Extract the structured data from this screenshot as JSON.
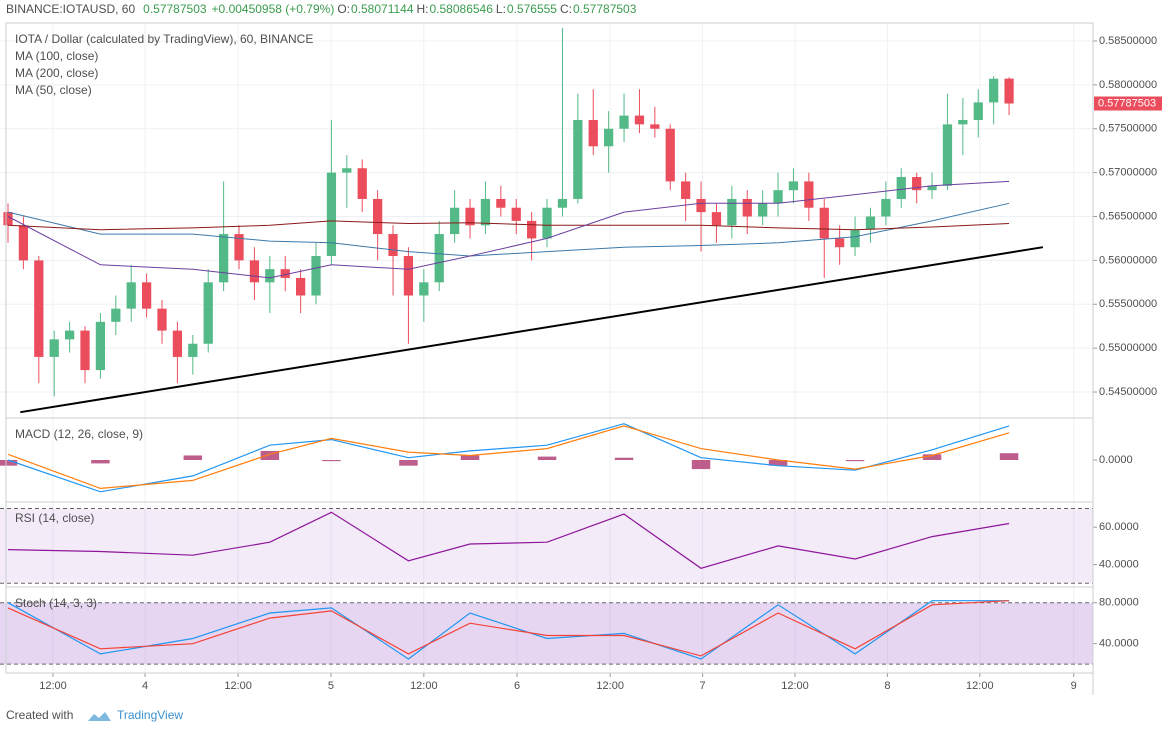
{
  "chart_data": {
    "type": "candlestick",
    "header": {
      "symbol": "BINANCE:IOTAUSD, 60",
      "change": "+0.00450958 (+0.79%)",
      "o_label": "O:",
      "h_label": "H:",
      "l_label": "L:",
      "c_label": "C:"
    },
    "title": "IOTA / Dollar (calculated by TradingView), 60, BINANCE",
    "up_color": "#53b987",
    "down_color": "#eb4d5c",
    "candles": [
      [
        0.5655,
        0.5665,
        0.562,
        0.564
      ],
      [
        0.564,
        0.565,
        0.559,
        0.56
      ],
      [
        0.56,
        0.5605,
        0.546,
        0.549
      ],
      [
        0.549,
        0.552,
        0.5445,
        0.551
      ],
      [
        0.551,
        0.553,
        0.5495,
        0.552
      ],
      [
        0.552,
        0.5525,
        0.546,
        0.5475
      ],
      [
        0.5475,
        0.554,
        0.5465,
        0.553
      ],
      [
        0.553,
        0.556,
        0.5515,
        0.5545
      ],
      [
        0.5545,
        0.5595,
        0.553,
        0.5575
      ],
      [
        0.5575,
        0.5585,
        0.5535,
        0.5545
      ],
      [
        0.5545,
        0.5555,
        0.5505,
        0.552
      ],
      [
        0.552,
        0.553,
        0.546,
        0.549
      ],
      [
        0.549,
        0.5515,
        0.547,
        0.5505
      ],
      [
        0.5505,
        0.559,
        0.5495,
        0.5575
      ],
      [
        0.5575,
        0.569,
        0.5565,
        0.563
      ],
      [
        0.563,
        0.564,
        0.559,
        0.56
      ],
      [
        0.56,
        0.5615,
        0.5555,
        0.5575
      ],
      [
        0.5575,
        0.5605,
        0.554,
        0.559
      ],
      [
        0.559,
        0.5605,
        0.5565,
        0.558
      ],
      [
        0.558,
        0.559,
        0.554,
        0.556
      ],
      [
        0.556,
        0.562,
        0.555,
        0.5605
      ],
      [
        0.5605,
        0.576,
        0.5595,
        0.57
      ],
      [
        0.57,
        0.572,
        0.566,
        0.5705
      ],
      [
        0.5705,
        0.5715,
        0.5655,
        0.567
      ],
      [
        0.567,
        0.568,
        0.56,
        0.563
      ],
      [
        0.563,
        0.564,
        0.556,
        0.5605
      ],
      [
        0.5605,
        0.5615,
        0.5505,
        0.556
      ],
      [
        0.556,
        0.559,
        0.553,
        0.5575
      ],
      [
        0.5575,
        0.5645,
        0.5565,
        0.563
      ],
      [
        0.563,
        0.568,
        0.562,
        0.566
      ],
      [
        0.566,
        0.567,
        0.5625,
        0.564
      ],
      [
        0.564,
        0.569,
        0.563,
        0.567
      ],
      [
        0.567,
        0.5685,
        0.565,
        0.566
      ],
      [
        0.566,
        0.567,
        0.563,
        0.5645
      ],
      [
        0.5645,
        0.5655,
        0.56,
        0.5625
      ],
      [
        0.5625,
        0.567,
        0.5615,
        0.566
      ],
      [
        0.566,
        0.5865,
        0.565,
        0.567
      ],
      [
        0.567,
        0.579,
        0.5665,
        0.576
      ],
      [
        0.576,
        0.5795,
        0.572,
        0.573
      ],
      [
        0.573,
        0.577,
        0.57,
        0.575
      ],
      [
        0.575,
        0.579,
        0.5735,
        0.5765
      ],
      [
        0.5765,
        0.5795,
        0.5745,
        0.5755
      ],
      [
        0.5755,
        0.5775,
        0.574,
        0.575
      ],
      [
        0.575,
        0.5755,
        0.568,
        0.569
      ],
      [
        0.569,
        0.57,
        0.5645,
        0.567
      ],
      [
        0.567,
        0.569,
        0.561,
        0.5655
      ],
      [
        0.5655,
        0.5665,
        0.562,
        0.564
      ],
      [
        0.564,
        0.5685,
        0.5625,
        0.567
      ],
      [
        0.567,
        0.568,
        0.563,
        0.565
      ],
      [
        0.565,
        0.568,
        0.564,
        0.5665
      ],
      [
        0.5665,
        0.57,
        0.565,
        0.568
      ],
      [
        0.568,
        0.5705,
        0.5665,
        0.569
      ],
      [
        0.569,
        0.57,
        0.5645,
        0.566
      ],
      [
        0.566,
        0.567,
        0.558,
        0.5625
      ],
      [
        0.5625,
        0.564,
        0.5595,
        0.5615
      ],
      [
        0.5615,
        0.565,
        0.5605,
        0.5635
      ],
      [
        0.5635,
        0.566,
        0.562,
        0.565
      ],
      [
        0.565,
        0.569,
        0.564,
        0.567
      ],
      [
        0.567,
        0.5705,
        0.566,
        0.5695
      ],
      [
        0.5695,
        0.57,
        0.5665,
        0.568
      ],
      [
        0.568,
        0.57,
        0.567,
        0.5685
      ],
      [
        0.5685,
        0.579,
        0.568,
        0.5755
      ],
      [
        0.5755,
        0.5785,
        0.572,
        0.576
      ],
      [
        0.576,
        0.5795,
        0.574,
        0.578
      ],
      [
        0.578,
        0.581,
        0.5755,
        0.5807
      ],
      [
        0.58071144,
        0.58086546,
        0.576555,
        0.57787503
      ]
    ],
    "xlim": [
      -0.52,
      70.45
    ],
    "xticks": [
      {
        "value": 2.92,
        "label": "12:00"
      },
      {
        "value": 8.9,
        "label": "4"
      },
      {
        "value": 14.94,
        "label": "12:00"
      },
      {
        "value": 20.97,
        "label": "5"
      },
      {
        "value": 27.0,
        "label": "12:00"
      },
      {
        "value": 33.05,
        "label": "6"
      },
      {
        "value": 39.1,
        "label": "12:00"
      },
      {
        "value": 45.1,
        "label": "7"
      },
      {
        "value": 51.1,
        "label": "12:00"
      },
      {
        "value": 57.1,
        "label": "8"
      },
      {
        "value": 63.1,
        "label": "12:00"
      },
      {
        "value": 69.2,
        "label": "9"
      }
    ],
    "ylim": [
      0.54204,
      0.58705
    ],
    "yticks": [
      {
        "value": 0.585,
        "label": "0.58500000"
      },
      {
        "value": 0.58,
        "label": "0.58000000"
      },
      {
        "value": 0.575,
        "label": "0.57500000"
      },
      {
        "value": 0.57,
        "label": "0.57000000"
      },
      {
        "value": 0.565,
        "label": "0.56500000"
      },
      {
        "value": 0.56,
        "label": "0.56000000"
      },
      {
        "value": 0.555,
        "label": "0.55500000"
      },
      {
        "value": 0.55,
        "label": "0.55000000"
      },
      {
        "value": 0.545,
        "label": "0.54500000"
      }
    ],
    "grid": true,
    "study_x": [
      0,
      6,
      12,
      17,
      21,
      26,
      30,
      35,
      40,
      45,
      50,
      55,
      60,
      65
    ],
    "series": [
      {
        "name": "MA (100, close)",
        "color": "#3c78a8",
        "values": [
          0.5655,
          0.563,
          0.563,
          0.5622,
          0.562,
          0.561,
          0.5605,
          0.561,
          0.5615,
          0.5617,
          0.562,
          0.5627,
          0.5645,
          0.5665
        ]
      },
      {
        "name": "MA (200, close)",
        "color": "#8b1a1a",
        "values": [
          0.564,
          0.5635,
          0.5637,
          0.564,
          0.5645,
          0.5642,
          0.5643,
          0.564,
          0.564,
          0.564,
          0.5637,
          0.5635,
          0.5638,
          0.5642
        ]
      },
      {
        "name": "MA (50, close)",
        "color": "#6b3fa0",
        "values": [
          0.565,
          0.5595,
          0.559,
          0.558,
          0.5595,
          0.559,
          0.5605,
          0.5625,
          0.5655,
          0.5665,
          0.5665,
          0.5675,
          0.5685,
          0.569
        ]
      }
    ],
    "trendline": {
      "x": [
        0.8,
        67.2
      ],
      "y": [
        0.5427,
        0.5615
      ]
    },
    "macd": {
      "title": "MACD (12, 26, close, 9)",
      "ylim": [
        -0.0037,
        0.0037
      ],
      "yticks": [
        {
          "value": 0,
          "label": "0.0000"
        }
      ],
      "macd": {
        "color": "#2196f3",
        "values": [
          0,
          -0.0028,
          -0.0014,
          0.0013,
          0.0018,
          0.0002,
          0.0008,
          0.0013,
          0.0032,
          0.0002,
          -0.0005,
          -0.0009,
          0.0009,
          0.003
        ]
      },
      "signal": {
        "color": "#ff7f0e",
        "values": [
          0.0005,
          -0.0025,
          -0.0018,
          0.0005,
          0.0019,
          0.0007,
          0.0004,
          0.001,
          0.003,
          0.001,
          0,
          -0.0008,
          0.0004,
          0.0024
        ]
      },
      "histogram": {
        "color": "#a3195b",
        "values": [
          -0.0005,
          -0.0003,
          0.0004,
          0.0008,
          -0.0001,
          -0.0005,
          0.0004,
          0.0003,
          0.0002,
          -0.0008,
          -0.0005,
          -0.0001,
          0.0005,
          0.0006
        ]
      }
    },
    "rsi": {
      "title": "RSI (14, close)",
      "ylim": [
        28,
        73.5
      ],
      "yticks": [
        {
          "value": 60,
          "label": "60.0000"
        },
        {
          "value": 40,
          "label": "40.0000"
        }
      ],
      "band": [
        30,
        70
      ],
      "color": "#8e1599",
      "values": [
        48,
        47,
        45,
        52,
        68,
        42,
        51,
        52,
        67,
        38,
        50,
        43,
        55,
        62
      ]
    },
    "stoch": {
      "title": "Stoch (14, 3, 3)",
      "ylim": [
        11.3,
        95.4
      ],
      "yticks": [
        {
          "value": 80,
          "label": "80.0000"
        },
        {
          "value": 40,
          "label": "40.0000"
        }
      ],
      "band": [
        20,
        80
      ],
      "k": {
        "color": "#2196f3",
        "values": [
          80,
          30,
          45,
          70,
          75,
          25,
          70,
          45,
          50,
          25,
          78,
          30,
          82,
          82
        ]
      },
      "d": {
        "color": "#f44336",
        "values": [
          75,
          35,
          40,
          65,
          72,
          30,
          60,
          48,
          48,
          28,
          70,
          35,
          78,
          82
        ]
      }
    },
    "footer": {
      "created": "Created with",
      "brand": "TradingView"
    }
  }
}
